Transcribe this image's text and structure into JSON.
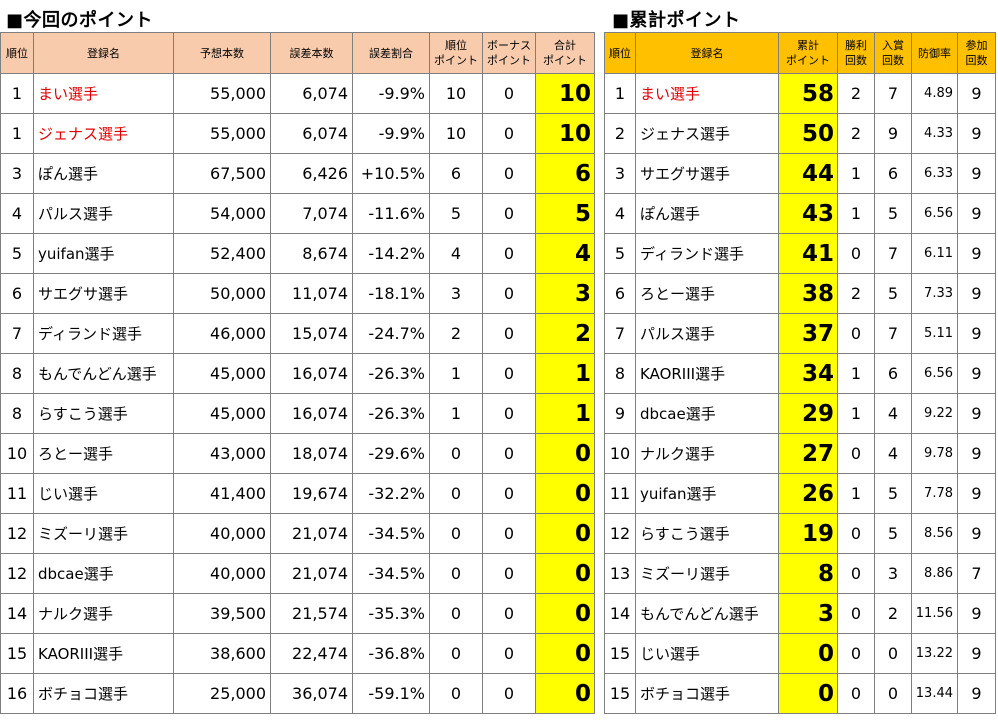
{
  "left": {
    "title": "■今回のポイント",
    "headers": {
      "rank": "順位",
      "name": "登録名",
      "prediction": "予想本数",
      "error": "誤差本数",
      "error_rate": "誤差割合",
      "rank_points_1": "順位",
      "rank_points_2": "ポイント",
      "bonus_1": "ボーナス",
      "bonus_2": "ポイント",
      "total_1": "合計",
      "total_2": "ポイント"
    },
    "rows": [
      {
        "rank": "1",
        "name": "まい選手",
        "prediction": "55,000",
        "error": "6,074",
        "error_rate": "-9.9%",
        "rank_points": "10",
        "bonus": "0",
        "total": "10"
      },
      {
        "rank": "1",
        "name": "ジェナス選手",
        "prediction": "55,000",
        "error": "6,074",
        "error_rate": "-9.9%",
        "rank_points": "10",
        "bonus": "0",
        "total": "10"
      },
      {
        "rank": "3",
        "name": "ぽん選手",
        "prediction": "67,500",
        "error": "6,426",
        "error_rate": "+10.5%",
        "rank_points": "6",
        "bonus": "0",
        "total": "6"
      },
      {
        "rank": "4",
        "name": "パルス選手",
        "prediction": "54,000",
        "error": "7,074",
        "error_rate": "-11.6%",
        "rank_points": "5",
        "bonus": "0",
        "total": "5"
      },
      {
        "rank": "5",
        "name": "yuifan選手",
        "prediction": "52,400",
        "error": "8,674",
        "error_rate": "-14.2%",
        "rank_points": "4",
        "bonus": "0",
        "total": "4"
      },
      {
        "rank": "6",
        "name": "サエグサ選手",
        "prediction": "50,000",
        "error": "11,074",
        "error_rate": "-18.1%",
        "rank_points": "3",
        "bonus": "0",
        "total": "3"
      },
      {
        "rank": "7",
        "name": "ディランド選手",
        "prediction": "46,000",
        "error": "15,074",
        "error_rate": "-24.7%",
        "rank_points": "2",
        "bonus": "0",
        "total": "2"
      },
      {
        "rank": "8",
        "name": "もんでんどん選手",
        "prediction": "45,000",
        "error": "16,074",
        "error_rate": "-26.3%",
        "rank_points": "1",
        "bonus": "0",
        "total": "1"
      },
      {
        "rank": "8",
        "name": "らすこう選手",
        "prediction": "45,000",
        "error": "16,074",
        "error_rate": "-26.3%",
        "rank_points": "1",
        "bonus": "0",
        "total": "1"
      },
      {
        "rank": "10",
        "name": "ろとー選手",
        "prediction": "43,000",
        "error": "18,074",
        "error_rate": "-29.6%",
        "rank_points": "0",
        "bonus": "0",
        "total": "0"
      },
      {
        "rank": "11",
        "name": "じい選手",
        "prediction": "41,400",
        "error": "19,674",
        "error_rate": "-32.2%",
        "rank_points": "0",
        "bonus": "0",
        "total": "0"
      },
      {
        "rank": "12",
        "name": "ミズーリ選手",
        "prediction": "40,000",
        "error": "21,074",
        "error_rate": "-34.5%",
        "rank_points": "0",
        "bonus": "0",
        "total": "0"
      },
      {
        "rank": "12",
        "name": "dbcae選手",
        "prediction": "40,000",
        "error": "21,074",
        "error_rate": "-34.5%",
        "rank_points": "0",
        "bonus": "0",
        "total": "0"
      },
      {
        "rank": "14",
        "name": "ナルク選手",
        "prediction": "39,500",
        "error": "21,574",
        "error_rate": "-35.3%",
        "rank_points": "0",
        "bonus": "0",
        "total": "0"
      },
      {
        "rank": "15",
        "name": "KAORIII選手",
        "prediction": "38,600",
        "error": "22,474",
        "error_rate": "-36.8%",
        "rank_points": "0",
        "bonus": "0",
        "total": "0"
      },
      {
        "rank": "16",
        "name": "ボチョコ選手",
        "prediction": "25,000",
        "error": "36,074",
        "error_rate": "-59.1%",
        "rank_points": "0",
        "bonus": "0",
        "total": "0"
      }
    ]
  },
  "right": {
    "title": "■累計ポイント",
    "headers": {
      "rank": "順位",
      "name": "登録名",
      "cumulative_1": "累計",
      "cumulative_2": "ポイント",
      "wins_1": "勝利",
      "wins_2": "回数",
      "placed_1": "入賞",
      "placed_2": "回数",
      "defense": "防御率",
      "entries_1": "参加",
      "entries_2": "回数"
    },
    "rows": [
      {
        "rank": "1",
        "name": "まい選手",
        "points": "58",
        "wins": "2",
        "placed": "7",
        "defense": "4.89",
        "entries": "9"
      },
      {
        "rank": "2",
        "name": "ジェナス選手",
        "points": "50",
        "wins": "2",
        "placed": "9",
        "defense": "4.33",
        "entries": "9"
      },
      {
        "rank": "3",
        "name": "サエグサ選手",
        "points": "44",
        "wins": "1",
        "placed": "6",
        "defense": "6.33",
        "entries": "9"
      },
      {
        "rank": "4",
        "name": "ぽん選手",
        "points": "43",
        "wins": "1",
        "placed": "5",
        "defense": "6.56",
        "entries": "9"
      },
      {
        "rank": "5",
        "name": "ディランド選手",
        "points": "41",
        "wins": "0",
        "placed": "7",
        "defense": "6.11",
        "entries": "9"
      },
      {
        "rank": "6",
        "name": "ろとー選手",
        "points": "38",
        "wins": "2",
        "placed": "5",
        "defense": "7.33",
        "entries": "9"
      },
      {
        "rank": "7",
        "name": "パルス選手",
        "points": "37",
        "wins": "0",
        "placed": "7",
        "defense": "5.11",
        "entries": "9"
      },
      {
        "rank": "8",
        "name": "KAORIII選手",
        "points": "34",
        "wins": "1",
        "placed": "6",
        "defense": "6.56",
        "entries": "9"
      },
      {
        "rank": "9",
        "name": "dbcae選手",
        "points": "29",
        "wins": "1",
        "placed": "4",
        "defense": "9.22",
        "entries": "9"
      },
      {
        "rank": "10",
        "name": "ナルク選手",
        "points": "27",
        "wins": "0",
        "placed": "4",
        "defense": "9.78",
        "entries": "9"
      },
      {
        "rank": "11",
        "name": "yuifan選手",
        "points": "26",
        "wins": "1",
        "placed": "5",
        "defense": "7.78",
        "entries": "9"
      },
      {
        "rank": "12",
        "name": "らすこう選手",
        "points": "19",
        "wins": "0",
        "placed": "5",
        "defense": "8.56",
        "entries": "9"
      },
      {
        "rank": "13",
        "name": "ミズーリ選手",
        "points": "8",
        "wins": "0",
        "placed": "3",
        "defense": "8.86",
        "entries": "7"
      },
      {
        "rank": "14",
        "name": "もんでんどん選手",
        "points": "3",
        "wins": "0",
        "placed": "2",
        "defense": "11.56",
        "entries": "9"
      },
      {
        "rank": "15",
        "name": "じい選手",
        "points": "0",
        "wins": "0",
        "placed": "0",
        "defense": "13.22",
        "entries": "9"
      },
      {
        "rank": "15",
        "name": "ボチョコ選手",
        "points": "0",
        "wins": "0",
        "placed": "0",
        "defense": "13.44",
        "entries": "9"
      }
    ]
  },
  "colors": {
    "left_header": "#f8cbad",
    "right_header": "#ffc000",
    "total_highlight": "#ffff00",
    "top_name": "#e00000"
  }
}
